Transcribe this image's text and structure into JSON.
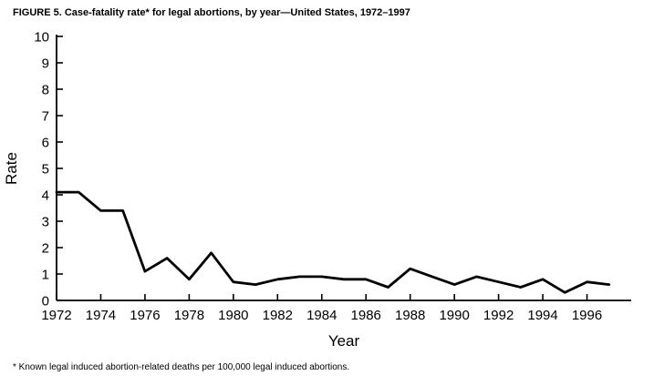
{
  "figure": {
    "title": "FIGURE 5. Case-fatality rate* for legal abortions, by year—United States, 1972–1997",
    "footnote": "* Known legal induced abortion-related deaths per 100,000 legal induced abortions."
  },
  "chart_data": {
    "type": "line",
    "title": "FIGURE 5. Case-fatality rate* for legal abortions, by year—United States, 1972–1997",
    "xlabel": "Year",
    "ylabel": "Rate",
    "x": [
      1972,
      1973,
      1974,
      1975,
      1976,
      1977,
      1978,
      1979,
      1980,
      1981,
      1982,
      1983,
      1984,
      1985,
      1986,
      1987,
      1988,
      1989,
      1990,
      1991,
      1992,
      1993,
      1994,
      1995,
      1996,
      1997
    ],
    "values": [
      4.1,
      4.1,
      3.4,
      3.4,
      1.1,
      1.6,
      0.8,
      1.8,
      0.7,
      0.6,
      0.8,
      0.9,
      0.9,
      0.8,
      0.8,
      0.5,
      1.2,
      0.9,
      0.6,
      0.9,
      0.7,
      0.5,
      0.8,
      0.3,
      0.7,
      0.6
    ],
    "xlim": [
      1972,
      1998
    ],
    "ylim": [
      0,
      10
    ],
    "xticks": [
      1972,
      1974,
      1976,
      1978,
      1980,
      1982,
      1984,
      1986,
      1988,
      1990,
      1992,
      1994,
      1996
    ],
    "ytick_step": 1,
    "grid": false,
    "legend": "none",
    "line_color": "#000000",
    "line_width": 2.8
  }
}
